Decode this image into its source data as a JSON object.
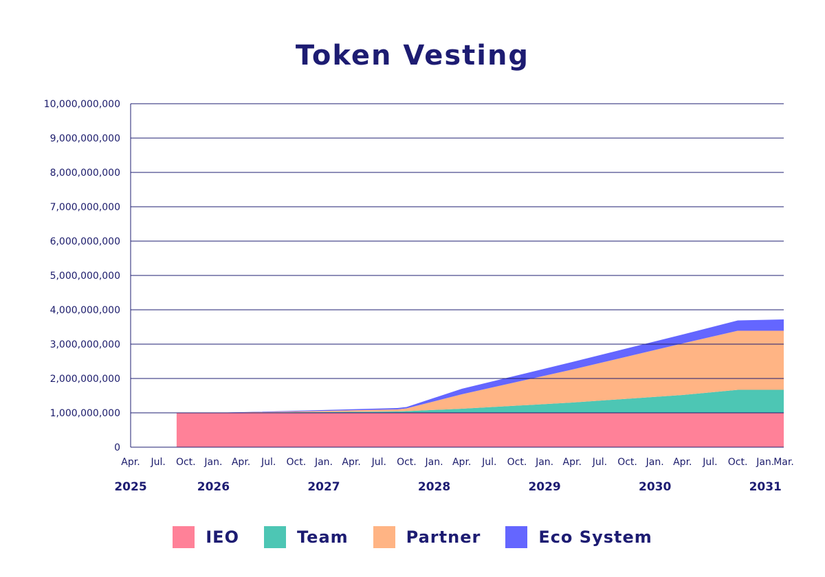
{
  "chart_data": {
    "type": "area",
    "title": "Token Vesting",
    "ylim": [
      0,
      10000000000
    ],
    "y_ticks": [
      0,
      1000000000,
      2000000000,
      3000000000,
      4000000000,
      5000000000,
      6000000000,
      7000000000,
      8000000000,
      9000000000,
      10000000000
    ],
    "y_tick_labels": [
      "0",
      "1,000,000,000",
      "2,000,000,000",
      "3,000,000,000",
      "4,000,000,000",
      "5,000,000,000",
      "6,000,000,000",
      "7,000,000,000",
      "8,000,000,000",
      "9,000,000,000",
      "10,000,000,000"
    ],
    "month_ticks": [
      {
        "label": "Apr.",
        "date": "2025-04"
      },
      {
        "label": "Jul.",
        "date": "2025-07"
      },
      {
        "label": "Oct.",
        "date": "2025-10"
      },
      {
        "label": "Jan.",
        "date": "2026-01"
      },
      {
        "label": "Apr.",
        "date": "2026-04"
      },
      {
        "label": "Jul.",
        "date": "2026-07"
      },
      {
        "label": "Oct.",
        "date": "2026-10"
      },
      {
        "label": "Jan.",
        "date": "2027-01"
      },
      {
        "label": "Apr.",
        "date": "2027-04"
      },
      {
        "label": "Jul.",
        "date": "2027-07"
      },
      {
        "label": "Oct.",
        "date": "2027-10"
      },
      {
        "label": "Jan.",
        "date": "2028-01"
      },
      {
        "label": "Apr.",
        "date": "2028-04"
      },
      {
        "label": "Jul.",
        "date": "2028-07"
      },
      {
        "label": "Oct.",
        "date": "2028-10"
      },
      {
        "label": "Jan.",
        "date": "2029-01"
      },
      {
        "label": "Apr.",
        "date": "2029-04"
      },
      {
        "label": "Jul.",
        "date": "2029-07"
      },
      {
        "label": "Oct.",
        "date": "2029-10"
      },
      {
        "label": "Jan.",
        "date": "2030-01"
      },
      {
        "label": "Apr.",
        "date": "2030-04"
      },
      {
        "label": "Jul.",
        "date": "2030-07"
      },
      {
        "label": "Oct.",
        "date": "2030-10"
      },
      {
        "label": "Jan.",
        "date": "2031-01"
      },
      {
        "label": "Mar.",
        "date": "2031-03"
      }
    ],
    "year_ticks": [
      {
        "label": "2025",
        "date": "2025-04"
      },
      {
        "label": "2026",
        "date": "2026-01"
      },
      {
        "label": "2027",
        "date": "2027-01"
      },
      {
        "label": "2028",
        "date": "2028-01"
      },
      {
        "label": "2029",
        "date": "2029-01"
      },
      {
        "label": "2030",
        "date": "2030-01"
      },
      {
        "label": "2031",
        "date": "2031-01"
      }
    ],
    "x": [
      "2025-09",
      "2025-10",
      "2026-01",
      "2026-10",
      "2027-09",
      "2027-10",
      "2028-04",
      "2029-04",
      "2030-04",
      "2030-10",
      "2031-03"
    ],
    "series": [
      {
        "name": "IEO",
        "color": "#ff8198",
        "values": [
          1000000000,
          1000000000,
          1000000000,
          1000000000,
          1000000000,
          1000000000,
          1000000000,
          1000000000,
          1000000000,
          1000000000,
          1000000000
        ]
      },
      {
        "name": "Team",
        "color": "#4dc6b4",
        "values": [
          0,
          0,
          0,
          20000000,
          40000000,
          50000000,
          120000000,
          300000000,
          520000000,
          670000000,
          670000000
        ]
      },
      {
        "name": "Partner",
        "color": "#ffb484",
        "values": [
          0,
          0,
          0,
          20000000,
          60000000,
          80000000,
          420000000,
          960000000,
          1500000000,
          1720000000,
          1720000000
        ]
      },
      {
        "name": "Eco System",
        "color": "#6466ff",
        "values": [
          0,
          0,
          0,
          20000000,
          40000000,
          40000000,
          160000000,
          220000000,
          260000000,
          300000000,
          330000000
        ]
      }
    ],
    "grid": true,
    "legend_position": "bottom"
  },
  "legend": [
    {
      "label": "IEO",
      "color": "#ff8198"
    },
    {
      "label": "Team",
      "color": "#4dc6b4"
    },
    {
      "label": "Partner",
      "color": "#ffb484"
    },
    {
      "label": "Eco System",
      "color": "#6466ff"
    }
  ]
}
